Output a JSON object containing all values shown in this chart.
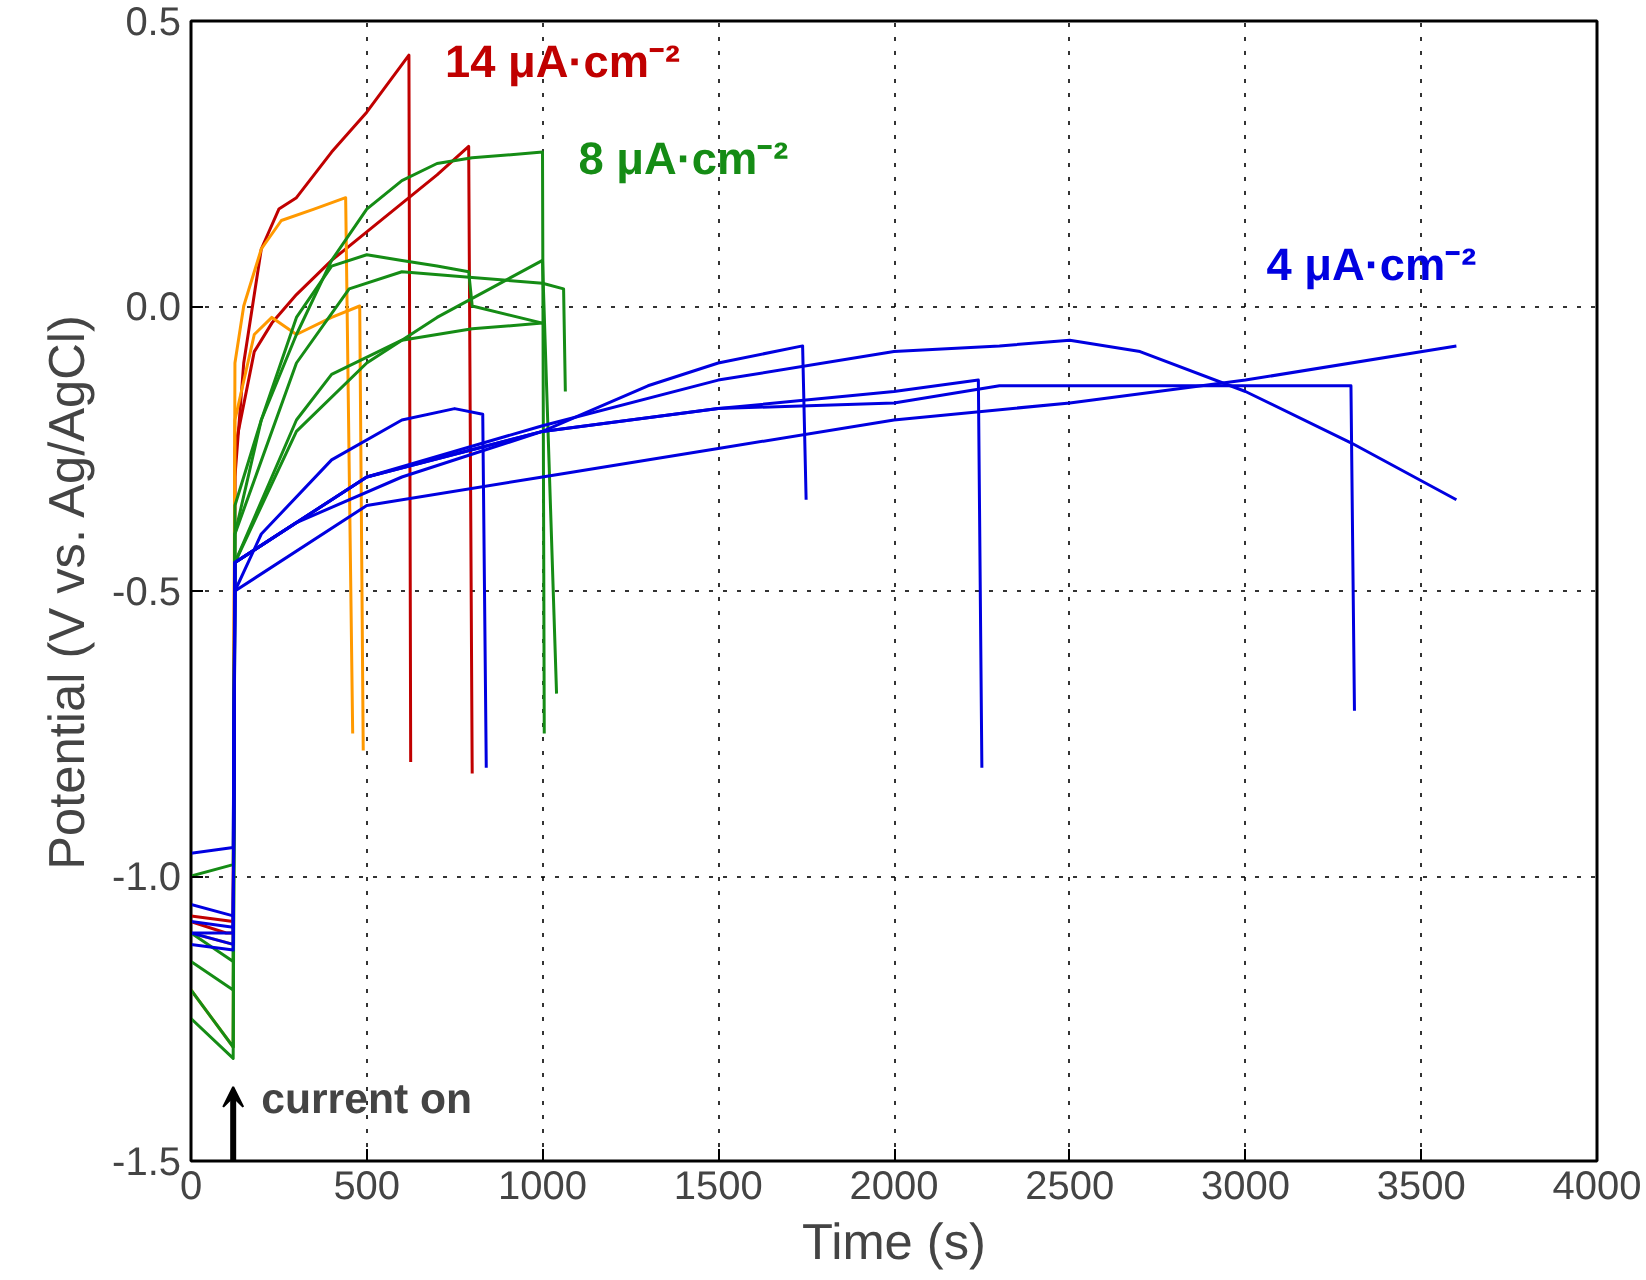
{
  "chart_data": {
    "type": "line",
    "xlabel": "Time (s)",
    "ylabel": "Potential (V vs. Ag/AgCl)",
    "xlim": [
      0,
      4000
    ],
    "ylim": [
      -1.5,
      0.5
    ],
    "xticks": [
      0,
      500,
      1000,
      1500,
      2000,
      2500,
      3000,
      3500,
      4000
    ],
    "yticks": [
      {
        "value": -1.5,
        "label": "-1.5"
      },
      {
        "value": -1.0,
        "label": "-1.0"
      },
      {
        "value": -0.5,
        "label": "-0.5"
      },
      {
        "value": 0.0,
        "label": "0.0"
      },
      {
        "value": 0.5,
        "label": "0.5"
      }
    ],
    "grid": true,
    "legend": false,
    "marker": "none",
    "line_style": "solid",
    "annotations": [
      "current on"
    ],
    "series": [
      {
        "name": "14 μA·cm⁻²",
        "color": "#c00000",
        "x": [
          0,
          100,
          120,
          125,
          150,
          200,
          250,
          300,
          400,
          500,
          620,
          625
        ],
        "values": [
          -1.08,
          -1.1,
          -1.1,
          -0.3,
          -0.1,
          0.1,
          0.17,
          0.19,
          0.27,
          0.34,
          0.44,
          -0.8
        ]
      },
      {
        "color": "#c00000",
        "x": [
          0,
          120,
          125,
          180,
          230,
          300,
          400,
          500,
          600,
          700,
          790,
          800
        ],
        "values": [
          -1.07,
          -1.08,
          -0.25,
          -0.08,
          -0.03,
          0.02,
          0.08,
          0.13,
          0.18,
          0.23,
          0.28,
          -0.82
        ]
      },
      {
        "color": "#ff9900",
        "x": [
          0,
          120,
          125,
          150,
          200,
          257,
          350,
          440,
          460
        ],
        "values": [
          -1.1,
          -1.12,
          -0.1,
          0.0,
          0.1,
          0.15,
          0.17,
          0.19,
          -0.75
        ]
      },
      {
        "color": "#ff9900",
        "x": [
          0,
          120,
          125,
          180,
          230,
          300,
          400,
          480,
          490
        ],
        "values": [
          -1.2,
          -1.3,
          -0.2,
          -0.05,
          -0.02,
          -0.05,
          -0.02,
          0.0,
          -0.78
        ]
      },
      {
        "name": "8 μA·cm⁻²",
        "color": "#158c15",
        "x": [
          0,
          120,
          125,
          200,
          300,
          400,
          500,
          600,
          700,
          800,
          1000,
          1005
        ],
        "values": [
          -1.2,
          -1.3,
          -0.35,
          -0.2,
          -0.05,
          0.08,
          0.17,
          0.22,
          0.25,
          0.26,
          0.27,
          -0.75
        ]
      },
      {
        "color": "#158c15",
        "x": [
          0,
          120,
          125,
          200,
          300,
          400,
          500,
          600,
          700,
          790,
          800,
          1000
        ],
        "values": [
          -1.0,
          -0.98,
          -0.4,
          -0.2,
          -0.02,
          0.07,
          0.09,
          0.08,
          0.07,
          0.06,
          0.0,
          -0.03
        ]
      },
      {
        "color": "#158c15",
        "x": [
          0,
          120,
          125,
          300,
          450,
          600,
          800,
          1000,
          1060,
          1065
        ],
        "values": [
          -1.1,
          -1.15,
          -0.4,
          -0.1,
          0.03,
          0.06,
          0.05,
          0.04,
          0.03,
          -0.15
        ]
      },
      {
        "color": "#158c15",
        "x": [
          0,
          120,
          125,
          300,
          500,
          700,
          1000,
          1040
        ],
        "values": [
          -1.25,
          -1.32,
          -0.45,
          -0.22,
          -0.1,
          -0.02,
          0.08,
          -0.68
        ]
      },
      {
        "color": "#158c15",
        "x": [
          0,
          120,
          125,
          300,
          400,
          600,
          800,
          1000
        ],
        "values": [
          -1.15,
          -1.2,
          -0.45,
          -0.2,
          -0.12,
          -0.06,
          -0.04,
          -0.03
        ]
      },
      {
        "color": "#0000e0",
        "x": [
          0,
          120,
          125,
          200,
          400,
          600,
          750,
          830,
          840
        ],
        "values": [
          -1.1,
          -1.1,
          -0.5,
          -0.4,
          -0.27,
          -0.2,
          -0.18,
          -0.19,
          -0.81
        ]
      },
      {
        "color": "#0000e0",
        "x": [
          0,
          120,
          125,
          300,
          600,
          1000,
          1300,
          1500,
          1740,
          1750
        ],
        "values": [
          -0.96,
          -0.95,
          -0.45,
          -0.38,
          -0.3,
          -0.22,
          -0.14,
          -0.1,
          -0.07,
          -0.34
        ]
      },
      {
        "color": "#0000e0",
        "x": [
          0,
          120,
          125,
          500,
          1000,
          1500,
          2000,
          2300,
          2500,
          2700,
          3000,
          3300,
          3600
        ],
        "values": [
          -1.05,
          -1.07,
          -0.45,
          -0.3,
          -0.21,
          -0.13,
          -0.08,
          -0.07,
          -0.06,
          -0.08,
          -0.15,
          -0.24,
          -0.34
        ]
      },
      {
        "name": "4 μA·cm⁻²",
        "color": "#0000e0",
        "x": [
          0,
          120,
          125,
          500,
          1000,
          1500,
          2000,
          2500,
          3000,
          3600
        ],
        "values": [
          -1.12,
          -1.13,
          -0.5,
          -0.35,
          -0.3,
          -0.25,
          -0.2,
          -0.17,
          -0.13,
          -0.07
        ]
      },
      {
        "color": "#0000e0",
        "x": [
          0,
          120,
          125,
          500,
          1000,
          1500,
          2000,
          2240,
          2250
        ],
        "values": [
          -1.08,
          -1.09,
          -0.45,
          -0.3,
          -0.22,
          -0.18,
          -0.15,
          -0.13,
          -0.81
        ]
      },
      {
        "color": "#0000e0",
        "x": [
          0,
          120,
          125,
          500,
          1000,
          1500,
          2000,
          2300,
          2800,
          3300,
          3310
        ],
        "values": [
          -1.1,
          -1.12,
          -0.45,
          -0.3,
          -0.22,
          -0.18,
          -0.17,
          -0.14,
          -0.14,
          -0.14,
          -0.71
        ]
      }
    ]
  }
}
